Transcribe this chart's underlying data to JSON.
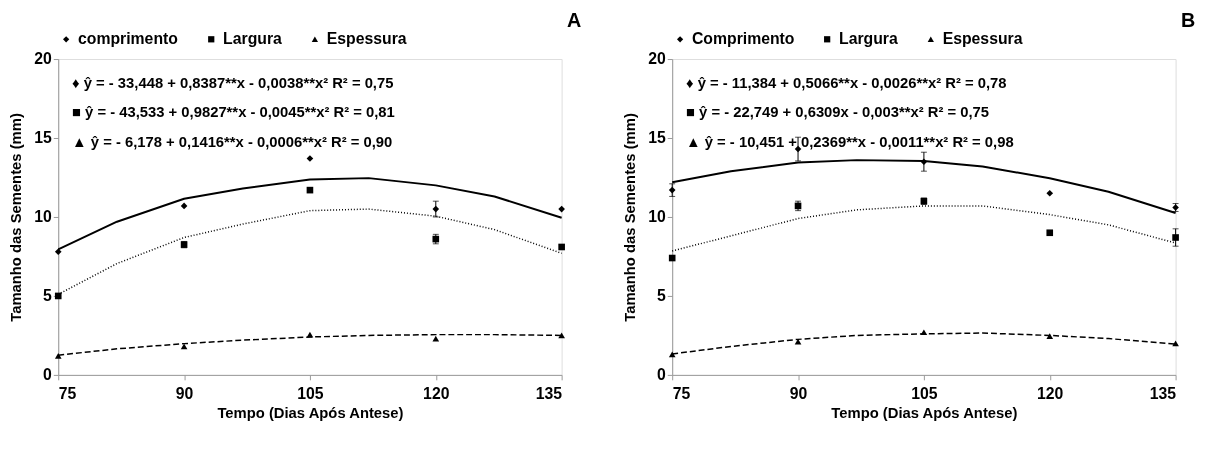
{
  "chart_data": [
    {
      "type": "scatter",
      "xlabel": "Tempo (Dias Após Antese)",
      "ylabel": "Tamanho das Sementes (mm)",
      "x": [
        75,
        90,
        105,
        120,
        135
      ],
      "xlim": [
        75,
        135
      ],
      "xticks": [
        75,
        90,
        105,
        120,
        135
      ],
      "ylim": [
        0,
        20
      ],
      "yticks": [
        0,
        5,
        10,
        15,
        20
      ],
      "grid": false,
      "legend": "top",
      "annotations": [
        "♦ ŷ = - 33,448 + 0,8387**x - 0,0038**x²  R² = 0,75",
        "■ ŷ = - 43,533 + 0,9827**x - 0,0045**x²  R² = 0,81",
        "▲ ŷ = - 6,178 + 0,1416**x - 0,0006**x²  R² = 0,90",
        "A"
      ],
      "series": [
        {
          "name": "comprimento",
          "type": "scatter",
          "marker": "diamond",
          "color": "#000000",
          "values": [
            7.8,
            10.7,
            13.7,
            10.5,
            10.5
          ],
          "errors": [
            null,
            null,
            null,
            0.5,
            null
          ]
        },
        {
          "name": "Largura",
          "type": "scatter",
          "marker": "square",
          "color": "#000000",
          "values": [
            5.0,
            8.25,
            11.7,
            8.6,
            8.1
          ],
          "errors": [
            null,
            0.2,
            null,
            0.3,
            null
          ]
        },
        {
          "name": "Espessura",
          "type": "scatter",
          "marker": "triangle",
          "color": "#000000",
          "values": [
            1.2,
            1.8,
            2.55,
            2.3,
            2.5
          ]
        },
        {
          "type": "line",
          "line_style": "solid",
          "marker": "none",
          "color": "#000000",
          "x": [
            75,
            82,
            90,
            97,
            105,
            112,
            120,
            127,
            135
          ],
          "values": [
            7.95,
            9.7,
            11.15,
            11.8,
            12.37,
            12.46,
            12.0,
            11.3,
            9.95
          ]
        },
        {
          "type": "line",
          "line_style": "dotted",
          "marker": "none",
          "color": "#000000",
          "x": [
            75,
            82,
            90,
            97,
            105,
            112,
            120,
            127,
            135
          ],
          "values": [
            5.1,
            7.05,
            8.7,
            9.55,
            10.4,
            10.5,
            10.05,
            9.2,
            7.7
          ]
        },
        {
          "type": "line",
          "line_style": "dashed",
          "marker": "none",
          "color": "#000000",
          "x": [
            75,
            82,
            90,
            97,
            105,
            112,
            120,
            127,
            135
          ],
          "values": [
            1.25,
            1.65,
            1.98,
            2.2,
            2.4,
            2.5,
            2.55,
            2.55,
            2.5
          ]
        }
      ]
    },
    {
      "type": "scatter",
      "xlabel": "Tempo (Dias Após Antese)",
      "ylabel": "Tamanho das Sementes (mm)",
      "x": [
        75,
        90,
        105,
        120,
        135
      ],
      "xlim": [
        75,
        135
      ],
      "xticks": [
        75,
        90,
        105,
        120,
        135
      ],
      "ylim": [
        0,
        20
      ],
      "yticks": [
        0,
        5,
        10,
        15,
        20
      ],
      "grid": false,
      "legend": "top",
      "annotations": [
        "♦ ŷ = - 11,384 + 0,5066**x - 0,0026**x²  R² = 0,78",
        "■ ŷ = - 22,749 + 0,6309x - 0,003**x²   R² = 0,75",
        "▲ ŷ = - 10,451 + 0,2369**x - 0,0011**x²  R² = 0,98",
        "B"
      ],
      "series": [
        {
          "name": "Comprimento",
          "type": "scatter",
          "marker": "diamond",
          "color": "#000000",
          "values": [
            11.7,
            14.3,
            13.5,
            11.5,
            10.6
          ],
          "errors": [
            0.4,
            0.75,
            0.6,
            null,
            0.25
          ]
        },
        {
          "name": "Largura",
          "type": "scatter",
          "marker": "square",
          "color": "#000000",
          "values": [
            7.4,
            10.7,
            11.0,
            9.0,
            8.7
          ],
          "errors": [
            null,
            0.3,
            0.2,
            null,
            0.55
          ]
        },
        {
          "name": "Espessura",
          "type": "scatter",
          "marker": "triangle",
          "color": "#000000",
          "values": [
            1.3,
            2.1,
            2.7,
            2.45,
            2.0
          ]
        },
        {
          "type": "line",
          "line_style": "solid",
          "marker": "none",
          "color": "#000000",
          "x": [
            75,
            82,
            90,
            97,
            105,
            112,
            120,
            127,
            135
          ],
          "values": [
            12.2,
            12.9,
            13.45,
            13.6,
            13.55,
            13.2,
            12.45,
            11.6,
            10.25
          ]
        },
        {
          "type": "line",
          "line_style": "dotted",
          "marker": "none",
          "color": "#000000",
          "x": [
            75,
            82,
            90,
            97,
            105,
            112,
            120,
            127,
            135
          ],
          "values": [
            7.85,
            8.8,
            9.9,
            10.45,
            10.7,
            10.7,
            10.15,
            9.5,
            8.35
          ]
        },
        {
          "type": "line",
          "line_style": "dashed",
          "marker": "none",
          "color": "#000000",
          "x": [
            75,
            82,
            90,
            97,
            105,
            112,
            120,
            127,
            135
          ],
          "values": [
            1.33,
            1.8,
            2.25,
            2.5,
            2.6,
            2.65,
            2.5,
            2.3,
            1.95
          ]
        }
      ]
    }
  ]
}
